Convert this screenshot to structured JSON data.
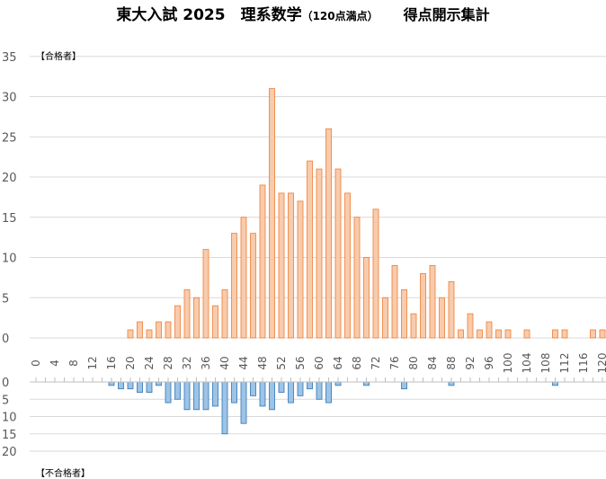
{
  "title": {
    "main": "東大入試 2025　理系数学",
    "small": "（120点満点）",
    "right": "得点開示集計"
  },
  "labels": {
    "pass": "【合格者】",
    "fail": "【不合格者】"
  },
  "colors": {
    "pass_fill": "#f8cbad",
    "pass_stroke": "#ed7d31",
    "fail_fill": "#9dc3e6",
    "fail_stroke": "#2e75b6",
    "grid": "#d9d9d9",
    "axis_text": "#595959"
  },
  "chart_data": [
    {
      "type": "bar",
      "name_label": "【合格者】",
      "x": [
        0,
        2,
        4,
        6,
        8,
        10,
        12,
        14,
        16,
        18,
        20,
        22,
        24,
        26,
        28,
        30,
        32,
        34,
        36,
        38,
        40,
        42,
        44,
        46,
        48,
        50,
        52,
        54,
        56,
        58,
        60,
        62,
        64,
        66,
        68,
        70,
        72,
        74,
        76,
        78,
        80,
        82,
        84,
        86,
        88,
        90,
        92,
        94,
        96,
        98,
        100,
        102,
        104,
        106,
        108,
        110,
        112,
        114,
        116,
        118,
        120
      ],
      "values": [
        0,
        0,
        0,
        0,
        0,
        0,
        0,
        0,
        0,
        0,
        1,
        2,
        1,
        2,
        2,
        4,
        6,
        5,
        11,
        4,
        6,
        13,
        15,
        13,
        19,
        31,
        18,
        18,
        17,
        22,
        21,
        26,
        21,
        18,
        15,
        10,
        16,
        5,
        9,
        6,
        3,
        8,
        9,
        5,
        7,
        1,
        3,
        1,
        2,
        1,
        1,
        0,
        1,
        0,
        0,
        1,
        1,
        0,
        0,
        1,
        1
      ],
      "ylim": [
        0,
        35
      ],
      "yticks": [
        "0",
        "5",
        "10",
        "15",
        "20",
        "25",
        "30",
        "35"
      ],
      "xtick_labels": [
        "0",
        "4",
        "8",
        "12",
        "16",
        "20",
        "24",
        "28",
        "32",
        "36",
        "40",
        "44",
        "48",
        "52",
        "56",
        "60",
        "64",
        "68",
        "72",
        "76",
        "80",
        "84",
        "88",
        "92",
        "96",
        "100",
        "104",
        "108",
        "112",
        "116",
        "120"
      ],
      "grid": true
    },
    {
      "type": "bar",
      "name_label": "【不合格者】",
      "x": [
        0,
        2,
        4,
        6,
        8,
        10,
        12,
        14,
        16,
        18,
        20,
        22,
        24,
        26,
        28,
        30,
        32,
        34,
        36,
        38,
        40,
        42,
        44,
        46,
        48,
        50,
        52,
        54,
        56,
        58,
        60,
        62,
        64,
        66,
        68,
        70,
        72,
        74,
        76,
        78,
        80,
        82,
        84,
        86,
        88,
        90,
        92,
        94,
        96,
        98,
        100,
        102,
        104,
        106,
        108,
        110,
        112,
        114,
        116,
        118,
        120
      ],
      "values": [
        0,
        0,
        0,
        0,
        0,
        0,
        0,
        0,
        1,
        2,
        2,
        3,
        3,
        1,
        6,
        5,
        8,
        8,
        8,
        7,
        15,
        6,
        12,
        4,
        7,
        8,
        3,
        6,
        4,
        2,
        5,
        6,
        1,
        0,
        0,
        1,
        0,
        0,
        0,
        2,
        0,
        0,
        0,
        0,
        1,
        0,
        0,
        0,
        0,
        0,
        0,
        0,
        0,
        0,
        0,
        1,
        0,
        0,
        0,
        0,
        0
      ],
      "ylim": [
        20,
        0
      ],
      "yticks": [
        "0",
        "5",
        "10",
        "15",
        "20"
      ],
      "direction": "downward",
      "grid": true
    }
  ]
}
